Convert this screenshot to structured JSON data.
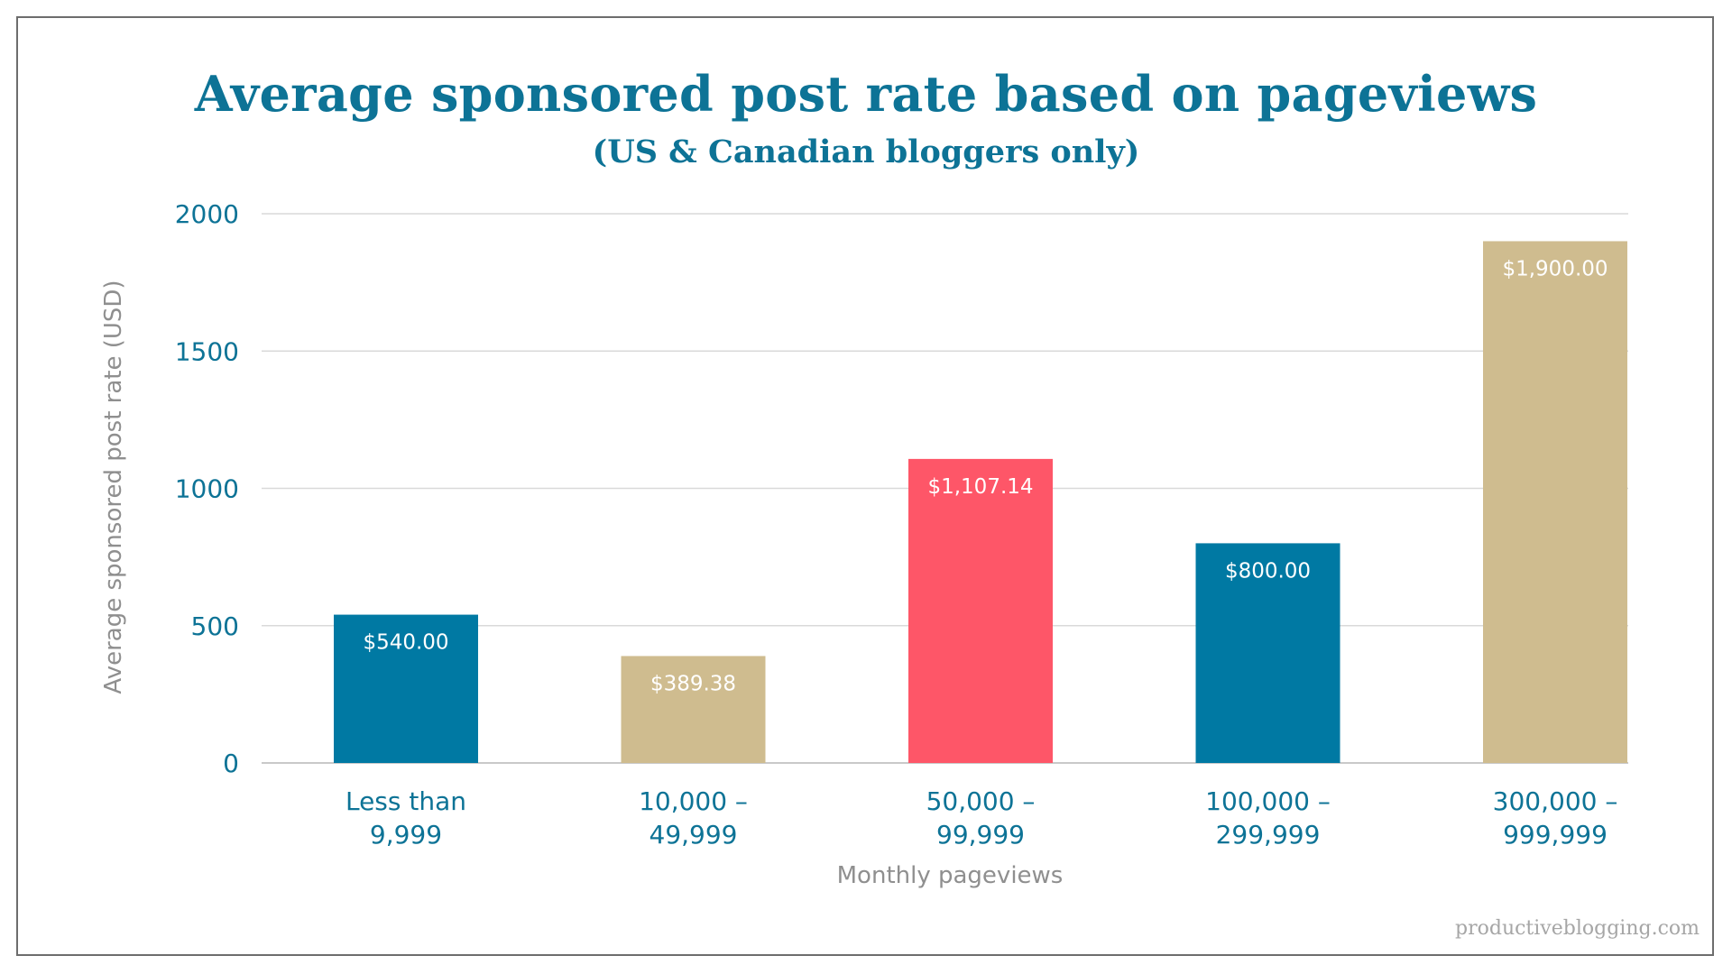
{
  "chart_data": {
    "type": "bar",
    "title": "Average sponsored post rate based on pageviews",
    "subtitle": "(US & Canadian bloggers only)",
    "xlabel": "Monthly pageviews",
    "ylabel": "Average sponsored post rate (USD)",
    "ylim": [
      0,
      2000
    ],
    "yticks": [
      "0",
      "500",
      "1000",
      "1500",
      "2000"
    ],
    "ytick_values": [
      0,
      500,
      1000,
      1500,
      2000
    ],
    "grid": true,
    "legend": "none",
    "categories": [
      [
        "Less than",
        "9,999"
      ],
      [
        "10,000 –",
        "49,999"
      ],
      [
        "50,000 –",
        "99,999"
      ],
      [
        "100,000 –",
        "299,999"
      ],
      [
        "300,000 –",
        "999,999"
      ]
    ],
    "values": [
      540,
      389.38,
      1107.14,
      800,
      1900
    ],
    "data_labels": [
      "$540.00",
      "$389.38",
      "$1,107.14",
      "$800.00",
      "$1,900.00"
    ],
    "colors": [
      "#0079a3",
      "#cfbc8f",
      "#fe5668",
      "#0079a3",
      "#cfbc8f"
    ]
  },
  "styles": {
    "title_color": "#0d7396",
    "grid_color": "#d9d9d9",
    "axis_title_color": "#8f8f8f",
    "tick_color": "#0d7396",
    "data_label_color": "#ffffff"
  },
  "watermark": "productiveblogging.com"
}
